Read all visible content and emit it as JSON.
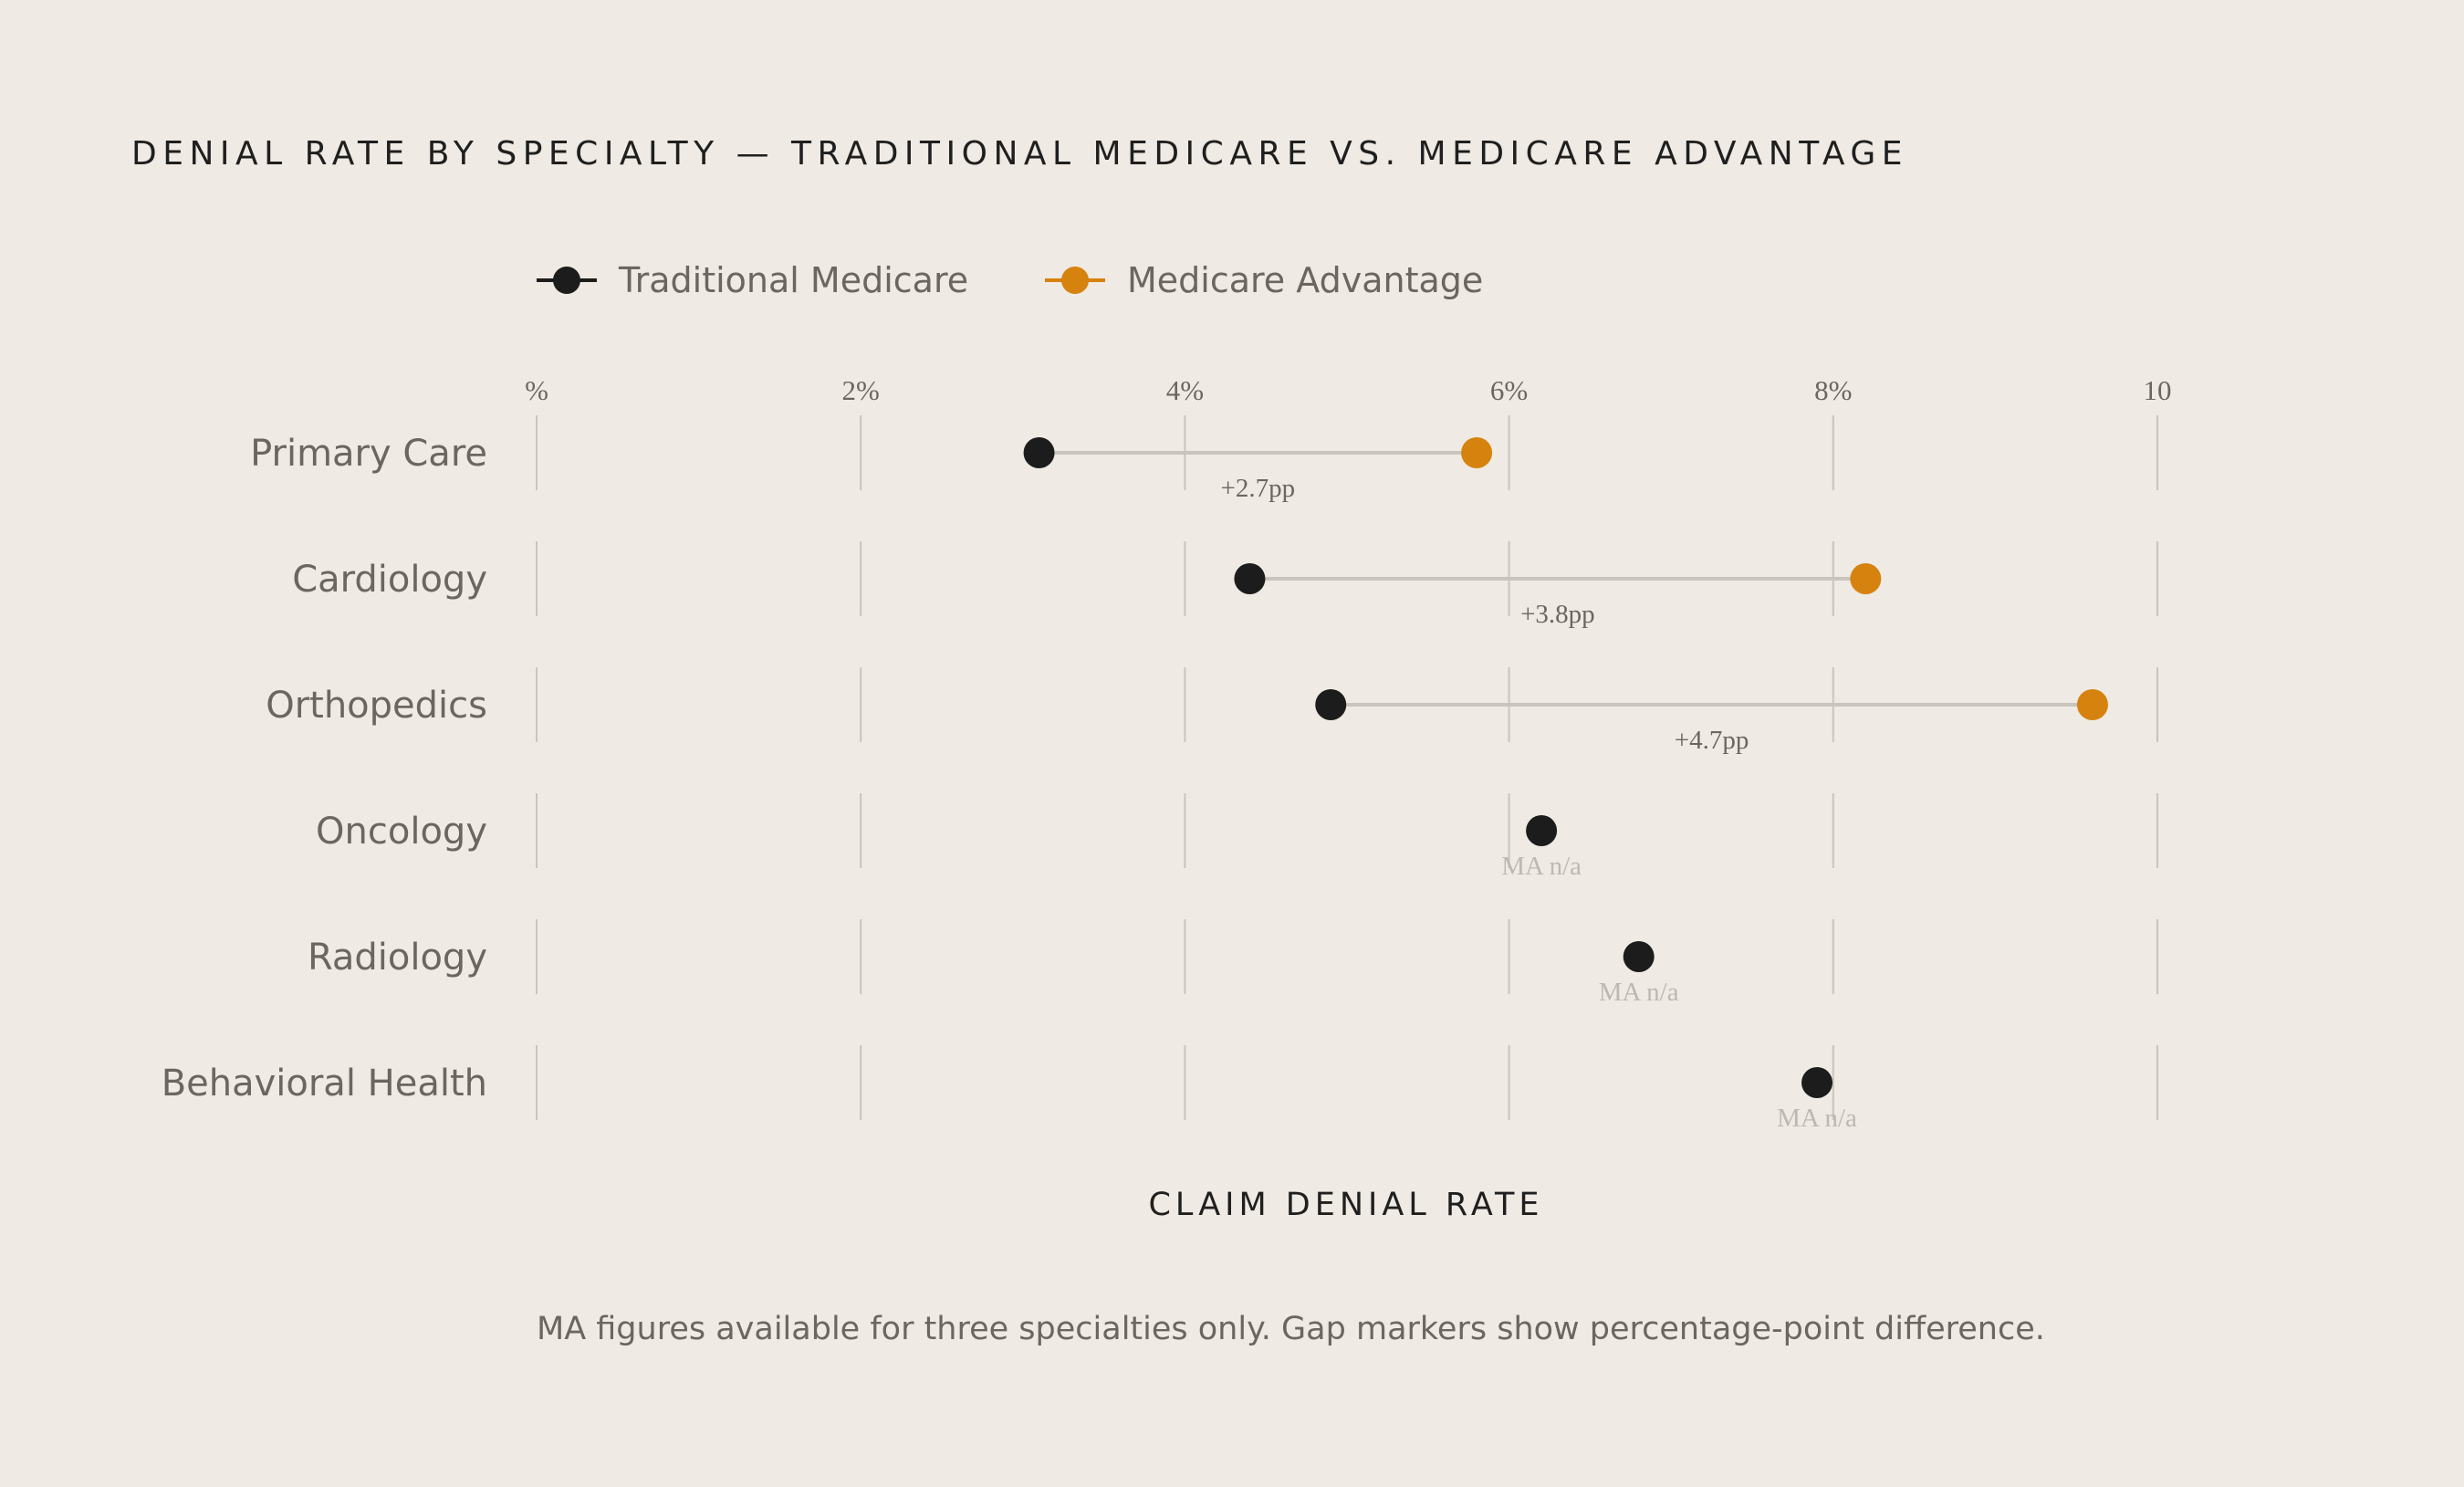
{
  "colors": {
    "background": "#efeae3",
    "traditional": "#1c1c1c",
    "advantage": "#d6820f",
    "grid": "#c9c4bd",
    "connector": "#c9c4bd",
    "text_muted": "#6b6660",
    "na_text": "#bdb8b1"
  },
  "chart_data": {
    "type": "dumbbell",
    "title": "DENIAL RATE BY SPECIALTY — TRADITIONAL MEDICARE VS. MEDICARE ADVANTAGE",
    "xlabel": "CLAIM DENIAL RATE",
    "ylabel": "",
    "xlim": [
      0,
      10
    ],
    "x_ticks": [
      0,
      2,
      4,
      6,
      8,
      10
    ],
    "x_tick_labels": [
      "%",
      "2%",
      "4%",
      "6%",
      "8%",
      "10"
    ],
    "grid": true,
    "legend_position": "top-left",
    "series": [
      {
        "name": "Traditional Medicare",
        "color": "#1c1c1c"
      },
      {
        "name": "Medicare Advantage",
        "color": "#d6820f"
      }
    ],
    "categories": [
      "Primary Care",
      "Cardiology",
      "Orthopedics",
      "Oncology",
      "Radiology",
      "Behavioral Health"
    ],
    "traditional": [
      3.1,
      4.4,
      4.9,
      6.2,
      6.8,
      7.9
    ],
    "advantage": [
      5.8,
      8.2,
      9.6,
      null,
      null,
      null
    ],
    "gap_labels": [
      "+2.7pp",
      "+3.8pp",
      "+4.7pp",
      null,
      null,
      null
    ],
    "missing_label": "MA n/a",
    "footnote": "MA figures available for three specialties only. Gap markers show percentage-point difference."
  }
}
